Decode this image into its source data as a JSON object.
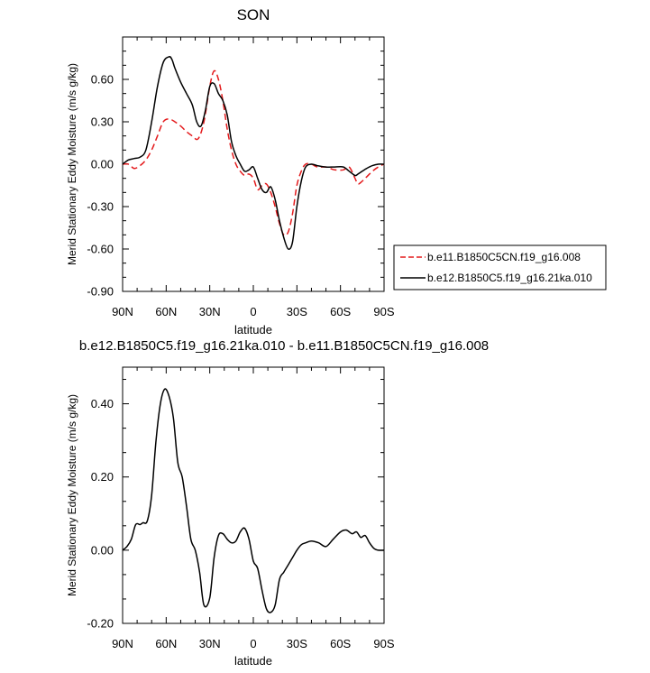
{
  "chart_data": [
    {
      "type": "line",
      "title": "SON",
      "xlabel": "latitude",
      "ylabel": "Merid Stationary Eddy Moisture (m/s g/kg)",
      "xlim": [
        90,
        -90
      ],
      "ylim": [
        -0.9,
        0.9
      ],
      "xticks": [
        90,
        60,
        30,
        0,
        -30,
        -60,
        -90
      ],
      "xtick_labels": [
        "90N",
        "60N",
        "30N",
        "0",
        "30S",
        "60S",
        "90S"
      ],
      "yticks": [
        -0.9,
        -0.6,
        -0.3,
        0.0,
        0.3,
        0.6
      ],
      "ytick_labels": [
        "-0.90",
        "-0.60",
        "-0.30",
        "0.00",
        "0.30",
        "0.60"
      ],
      "legend_position": "right",
      "series": [
        {
          "name": "b.e11.B1850C5CN.f19_g16.008",
          "color": "#e41a1c",
          "dash": "dashed",
          "x": [
            90,
            86,
            82,
            78,
            74,
            70,
            66,
            62,
            58,
            54,
            50,
            46,
            42,
            38,
            34,
            30,
            27,
            24,
            21,
            18,
            15,
            12,
            9,
            6,
            3,
            0,
            -3,
            -6,
            -9,
            -12,
            -15,
            -18,
            -21,
            -24,
            -27,
            -30,
            -33,
            -36,
            -40,
            -44,
            -50,
            -56,
            -62,
            -66,
            -70,
            -72,
            -75,
            -78,
            -82,
            -86,
            -90
          ],
          "y": [
            0.0,
            0.0,
            -0.03,
            -0.01,
            0.03,
            0.1,
            0.2,
            0.3,
            0.32,
            0.3,
            0.27,
            0.23,
            0.2,
            0.18,
            0.3,
            0.55,
            0.66,
            0.6,
            0.45,
            0.25,
            0.1,
            0.0,
            -0.05,
            -0.08,
            -0.07,
            -0.1,
            -0.18,
            -0.15,
            -0.14,
            -0.2,
            -0.3,
            -0.42,
            -0.5,
            -0.48,
            -0.35,
            -0.15,
            -0.05,
            0.0,
            0.0,
            -0.02,
            -0.02,
            -0.04,
            -0.04,
            -0.02,
            -0.1,
            -0.14,
            -0.12,
            -0.09,
            -0.05,
            -0.02,
            0.0
          ]
        },
        {
          "name": "b.e12.B1850C5.f19_g16.21ka.010",
          "color": "#000000",
          "dash": "solid",
          "x": [
            90,
            86,
            82,
            78,
            74,
            70,
            66,
            62,
            58,
            56,
            54,
            50,
            46,
            42,
            39,
            36,
            33,
            30,
            27,
            24,
            21,
            18,
            15,
            12,
            9,
            6,
            3,
            0,
            -3,
            -6,
            -9,
            -12,
            -15,
            -18,
            -21,
            -24,
            -27,
            -30,
            -33,
            -36,
            -40,
            -44,
            -50,
            -56,
            -62,
            -66,
            -70,
            -72,
            -75,
            -78,
            -82,
            -86,
            -90
          ],
          "y": [
            0.0,
            0.03,
            0.04,
            0.05,
            0.1,
            0.3,
            0.55,
            0.72,
            0.76,
            0.74,
            0.68,
            0.58,
            0.5,
            0.42,
            0.3,
            0.27,
            0.38,
            0.55,
            0.57,
            0.5,
            0.45,
            0.35,
            0.16,
            0.06,
            0.0,
            -0.05,
            -0.04,
            -0.02,
            -0.1,
            -0.18,
            -0.2,
            -0.16,
            -0.25,
            -0.4,
            -0.52,
            -0.6,
            -0.55,
            -0.3,
            -0.12,
            -0.02,
            0.0,
            -0.01,
            -0.02,
            -0.02,
            -0.02,
            -0.05,
            -0.08,
            -0.07,
            -0.05,
            -0.03,
            -0.01,
            0.0,
            0.0
          ]
        }
      ]
    },
    {
      "type": "line",
      "title": "b.e12.B1850C5.f19_g16.21ka.010 - b.e11.B1850C5CN.f19_g16.008",
      "xlabel": "latitude",
      "ylabel": "Merid Stationary Eddy Moisture (m/s g/kg)",
      "xlim": [
        90,
        -90
      ],
      "ylim": [
        -0.2,
        0.5
      ],
      "xticks": [
        90,
        60,
        30,
        0,
        -30,
        -60,
        -90
      ],
      "xtick_labels": [
        "90N",
        "60N",
        "30N",
        "0",
        "30S",
        "60S",
        "90S"
      ],
      "yticks": [
        -0.2,
        0.0,
        0.2,
        0.4
      ],
      "ytick_labels": [
        "-0.20",
        "0.00",
        "0.20",
        "0.40"
      ],
      "series": [
        {
          "color": "#000000",
          "dash": "solid",
          "x": [
            90,
            87,
            84,
            81,
            78,
            76,
            73,
            70,
            67,
            64,
            61,
            58,
            55,
            52,
            49,
            46,
            43,
            40,
            37,
            34,
            30,
            27,
            24,
            21,
            18,
            15,
            12,
            9,
            6,
            3,
            0,
            -3,
            -6,
            -9,
            -12,
            -15,
            -18,
            -21,
            -24,
            -27,
            -30,
            -33,
            -36,
            -40,
            -45,
            -50,
            -55,
            -60,
            -64,
            -68,
            -71,
            -74,
            -77,
            -80,
            -83,
            -86,
            -90
          ],
          "y": [
            0.0,
            0.01,
            0.03,
            0.07,
            0.07,
            0.075,
            0.08,
            0.15,
            0.3,
            0.4,
            0.44,
            0.42,
            0.36,
            0.24,
            0.2,
            0.12,
            0.03,
            0.0,
            -0.06,
            -0.15,
            -0.13,
            -0.02,
            0.04,
            0.045,
            0.03,
            0.02,
            0.025,
            0.05,
            0.06,
            0.03,
            -0.03,
            -0.05,
            -0.11,
            -0.16,
            -0.17,
            -0.15,
            -0.08,
            -0.06,
            -0.04,
            -0.02,
            0.0,
            0.015,
            0.02,
            0.025,
            0.02,
            0.01,
            0.03,
            0.05,
            0.055,
            0.045,
            0.05,
            0.035,
            0.04,
            0.02,
            0.005,
            0.0,
            0.0
          ]
        }
      ]
    }
  ]
}
